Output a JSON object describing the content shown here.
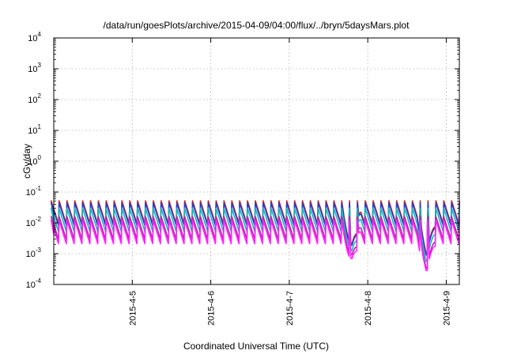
{
  "chart_data": {
    "type": "line",
    "title": "/data/run/goesPlots/archive/2015-04-09/04:00/flux/../bryn/5daysMars.plot",
    "xlabel": "Coordinated Universal Time (UTC)",
    "ylabel": "cGy/day",
    "x_range": [
      "2015-04-04T00:00",
      "2015-04-09T04:00"
    ],
    "ylim": [
      0.0001,
      10000
    ],
    "y_scale": "log",
    "grid": true,
    "x_ticks": [
      {
        "date": "2015-04-05T00:00",
        "label": "2015-4-5"
      },
      {
        "date": "2015-04-06T00:00",
        "label": "2015-4-6"
      },
      {
        "date": "2015-04-07T00:00",
        "label": "2015-4-7"
      },
      {
        "date": "2015-04-08T00:00",
        "label": "2015-4-8"
      },
      {
        "date": "2015-04-09T00:00",
        "label": "2015-4-9"
      }
    ],
    "y_ticks": [
      {
        "value": 0.0001,
        "base": "10",
        "exp": "-4"
      },
      {
        "value": 0.001,
        "base": "10",
        "exp": "-3"
      },
      {
        "value": 0.01,
        "base": "10",
        "exp": "-2"
      },
      {
        "value": 0.1,
        "base": "10",
        "exp": "-1"
      },
      {
        "value": 1,
        "base": "10",
        "exp": "0"
      },
      {
        "value": 10,
        "base": "10",
        "exp": "1"
      },
      {
        "value": 100,
        "base": "10",
        "exp": "2"
      },
      {
        "value": 1000,
        "base": "10",
        "exp": "3"
      },
      {
        "value": 10000,
        "base": "10",
        "exp": "4"
      }
    ],
    "sawtooth_period_hours": 2.4,
    "series": [
      {
        "color": "#e0201c",
        "peak": 0.052,
        "trough": 0.0092,
        "dips": [
          {
            "date": "2015-04-07T19:00",
            "value": 0.0018
          },
          {
            "date": "2015-04-08T18:00",
            "value": 0.0009
          }
        ]
      },
      {
        "color": "#2040d0",
        "peak": 0.045,
        "trough": 0.0082,
        "dips": [
          {
            "date": "2015-04-07T19:00",
            "value": 0.0016
          },
          {
            "date": "2015-04-08T18:00",
            "value": 0.0008
          }
        ]
      },
      {
        "color": "#19b7b7",
        "peak": 0.03,
        "trough": 0.0052,
        "dips": [
          {
            "date": "2015-04-07T19:00",
            "value": 0.0011
          },
          {
            "date": "2015-04-08T18:00",
            "value": 0.0005
          }
        ]
      },
      {
        "color": "#c020b0",
        "peak": 0.016,
        "trough": 0.0029,
        "dips": [
          {
            "date": "2015-04-07T19:00",
            "value": 0.0008
          },
          {
            "date": "2015-04-08T18:00",
            "value": 0.0003
          }
        ]
      },
      {
        "color": "#ff20ff",
        "peak": 0.012,
        "trough": 0.0021,
        "dips": [
          {
            "date": "2015-04-07T19:00",
            "value": 0.0006
          },
          {
            "date": "2015-04-08T18:00",
            "value": 0.00025
          }
        ]
      }
    ]
  }
}
